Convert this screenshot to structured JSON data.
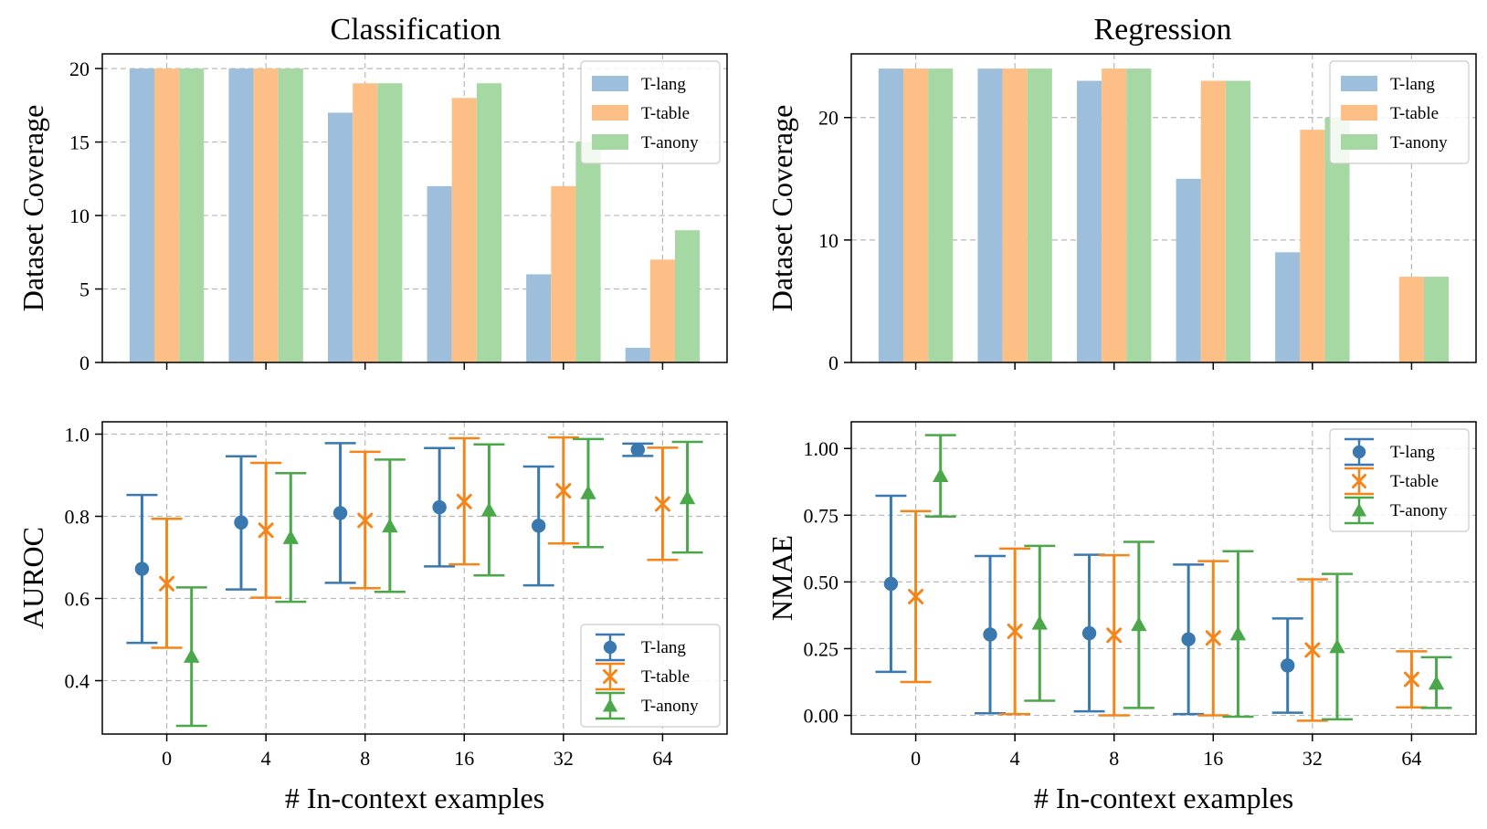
{
  "column_titles": {
    "left": "Classification",
    "right": "Regression"
  },
  "series_colors": {
    "bar": {
      "T-lang": "#9ebfdc",
      "T-table": "#fdbf86",
      "T-anony": "#a6d8a3"
    },
    "err": {
      "T-lang": "#3a78b0",
      "T-table": "#f58518",
      "T-anony": "#4ba84a"
    }
  },
  "chart_data": [
    {
      "id": "cls_cov",
      "type": "bar",
      "title": "Classification",
      "xlabel": "",
      "ylabel": "Dataset Coverage",
      "categories": [
        "0",
        "4",
        "8",
        "16",
        "32",
        "64"
      ],
      "ylim": [
        0,
        21
      ],
      "yticks": [
        0,
        5,
        10,
        15,
        20
      ],
      "ytick_labels": [
        "0",
        "5",
        "10",
        "15",
        "20"
      ],
      "grid": true,
      "legend": "top-right",
      "series": [
        {
          "name": "T-lang",
          "values": [
            20,
            20,
            17,
            12,
            6,
            1
          ]
        },
        {
          "name": "T-table",
          "values": [
            20,
            20,
            19,
            18,
            12,
            7
          ]
        },
        {
          "name": "T-anony",
          "values": [
            20,
            20,
            19,
            19,
            15,
            9
          ]
        }
      ]
    },
    {
      "id": "reg_cov",
      "type": "bar",
      "title": "Regression",
      "xlabel": "",
      "ylabel": "Dataset Coverage",
      "categories": [
        "0",
        "4",
        "8",
        "16",
        "32",
        "64"
      ],
      "ylim": [
        0,
        25.2
      ],
      "yticks": [
        0,
        10,
        20
      ],
      "ytick_labels": [
        "0",
        "10",
        "20"
      ],
      "grid": true,
      "legend": "top-right",
      "series": [
        {
          "name": "T-lang",
          "values": [
            24,
            24,
            23,
            15,
            9,
            0
          ]
        },
        {
          "name": "T-table",
          "values": [
            24,
            24,
            24,
            23,
            19,
            7
          ]
        },
        {
          "name": "T-anony",
          "values": [
            24,
            24,
            24,
            23,
            20,
            7
          ]
        }
      ]
    },
    {
      "id": "cls_auroc",
      "type": "errorbar",
      "xlabel": "# In-context examples",
      "ylabel": "AUROC",
      "categories": [
        "0",
        "4",
        "8",
        "16",
        "32",
        "64"
      ],
      "ylim": [
        0.27,
        1.03
      ],
      "yticks": [
        0.4,
        0.6,
        0.8,
        1.0
      ],
      "ytick_labels": [
        "0.4",
        "0.6",
        "0.8",
        "1.0"
      ],
      "grid": true,
      "legend": "bottom-right",
      "series": [
        {
          "name": "T-lang",
          "marker": "circle",
          "values": [
            0.672,
            0.785,
            0.808,
            0.822,
            0.777,
            0.962
          ],
          "lower": [
            0.492,
            0.622,
            0.638,
            0.678,
            0.632,
            0.947
          ],
          "upper": [
            0.852,
            0.946,
            0.978,
            0.966,
            0.921,
            0.977
          ]
        },
        {
          "name": "T-table",
          "marker": "x",
          "values": [
            0.636,
            0.766,
            0.79,
            0.836,
            0.862,
            0.83
          ],
          "lower": [
            0.48,
            0.602,
            0.625,
            0.683,
            0.734,
            0.694
          ],
          "upper": [
            0.794,
            0.93,
            0.957,
            0.99,
            0.992,
            0.967
          ]
        },
        {
          "name": "T-anony",
          "marker": "triangle",
          "values": [
            0.459,
            0.748,
            0.776,
            0.815,
            0.857,
            0.845
          ],
          "lower": [
            0.29,
            0.592,
            0.616,
            0.656,
            0.725,
            0.712
          ],
          "upper": [
            0.627,
            0.905,
            0.938,
            0.975,
            0.988,
            0.981
          ]
        }
      ]
    },
    {
      "id": "reg_nmae",
      "type": "errorbar",
      "xlabel": "# In-context examples",
      "ylabel": "NMAE",
      "categories": [
        "0",
        "4",
        "8",
        "16",
        "32",
        "64"
      ],
      "ylim": [
        -0.07,
        1.1
      ],
      "yticks": [
        0.0,
        0.25,
        0.5,
        0.75,
        1.0
      ],
      "ytick_labels": [
        "0.00",
        "0.25",
        "0.50",
        "0.75",
        "1.00"
      ],
      "grid": true,
      "legend": "top-right",
      "series": [
        {
          "name": "T-lang",
          "marker": "circle",
          "values": [
            0.493,
            0.303,
            0.308,
            0.285,
            0.187,
            null
          ],
          "lower": [
            0.163,
            0.008,
            0.015,
            0.005,
            0.01,
            null
          ],
          "upper": [
            0.823,
            0.597,
            0.602,
            0.565,
            0.363,
            null
          ]
        },
        {
          "name": "T-table",
          "marker": "x",
          "values": [
            0.445,
            0.315,
            0.3,
            0.29,
            0.245,
            0.135
          ],
          "lower": [
            0.125,
            0.005,
            0.0,
            0.0,
            -0.02,
            0.03
          ],
          "upper": [
            0.765,
            0.625,
            0.6,
            0.578,
            0.51,
            0.24
          ]
        },
        {
          "name": "T-anony",
          "marker": "triangle",
          "values": [
            0.898,
            0.345,
            0.34,
            0.305,
            0.257,
            0.12
          ],
          "lower": [
            0.745,
            0.055,
            0.028,
            -0.005,
            -0.015,
            0.028
          ],
          "upper": [
            1.05,
            0.635,
            0.65,
            0.615,
            0.53,
            0.218
          ]
        }
      ]
    }
  ]
}
